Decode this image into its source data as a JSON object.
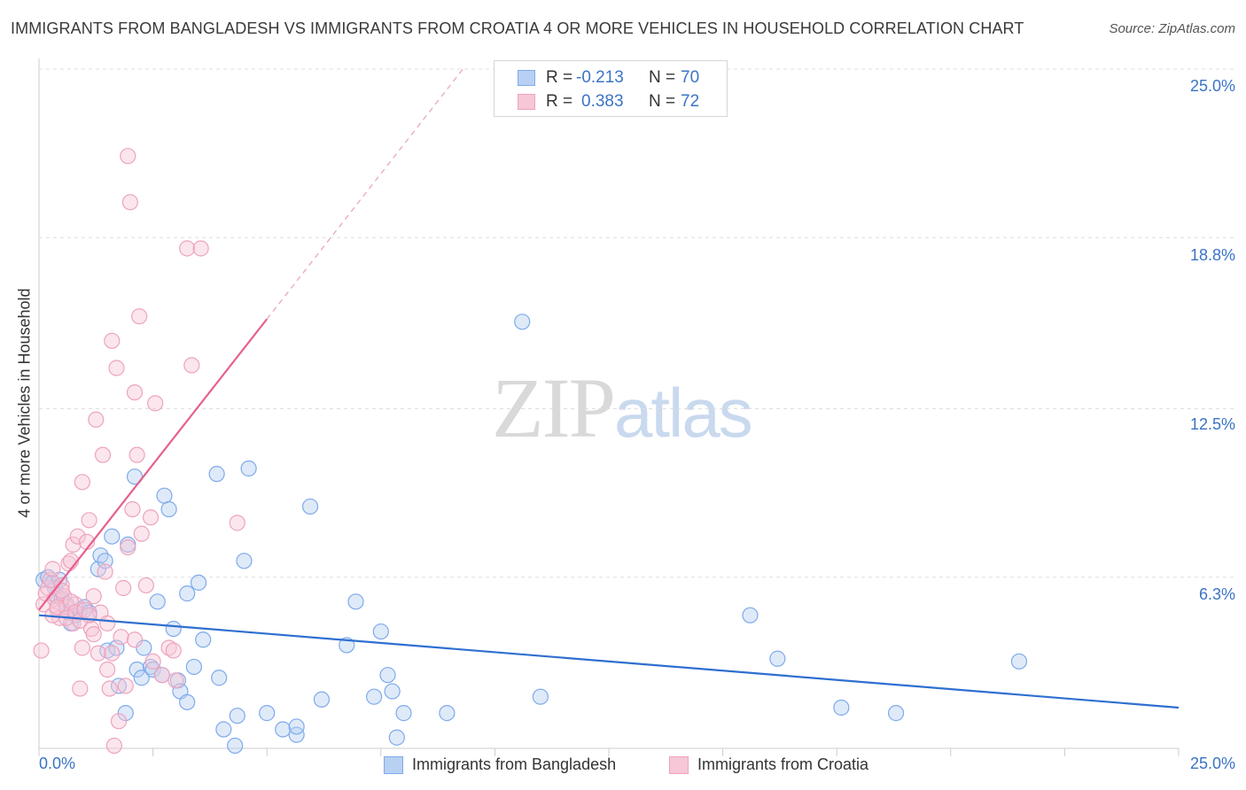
{
  "chart_data": {
    "type": "scatter",
    "title": "IMMIGRANTS FROM BANGLADESH VS IMMIGRANTS FROM CROATIA 4 OR MORE VEHICLES IN HOUSEHOLD CORRELATION CHART",
    "source": "Source: ZipAtlas.com",
    "xlabel": "",
    "ylabel": "4 or more Vehicles in Household",
    "xlim": [
      0,
      25
    ],
    "ylim": [
      0,
      25
    ],
    "x_tick_labels": [
      "0.0%",
      "25.0%"
    ],
    "y_tick_values": [
      6.3,
      12.5,
      18.8,
      25.0
    ],
    "y_tick_labels": [
      "6.3%",
      "12.5%",
      "18.8%",
      "25.0%"
    ],
    "grid": true,
    "legend_position": "bottom-center",
    "watermark": {
      "part1": "ZIP",
      "part2": "atlas"
    },
    "series": [
      {
        "name": "Immigrants from Bangladesh",
        "color": "#7eaaeb",
        "fill": "#b8d0f2",
        "line_color": "#2f6fd0",
        "r_label": "R =",
        "r_value": "-0.213",
        "n_label": "N =",
        "n_value": "70",
        "trend": {
          "x": [
            0,
            25
          ],
          "y": [
            4.9,
            1.5
          ],
          "dashed_x": null
        },
        "points": [
          [
            0.1,
            6.2
          ],
          [
            0.2,
            6.3
          ],
          [
            0.3,
            6.1
          ],
          [
            0.35,
            5.9
          ],
          [
            0.4,
            5.6
          ],
          [
            0.45,
            6.2
          ],
          [
            0.5,
            5.5
          ],
          [
            0.6,
            5.3
          ],
          [
            0.65,
            5.0
          ],
          [
            0.7,
            4.6
          ],
          [
            0.8,
            4.9
          ],
          [
            0.9,
            5.1
          ],
          [
            1.0,
            5.2
          ],
          [
            1.1,
            5.0
          ],
          [
            1.3,
            6.6
          ],
          [
            1.35,
            7.1
          ],
          [
            1.45,
            6.9
          ],
          [
            1.6,
            7.8
          ],
          [
            1.5,
            3.6
          ],
          [
            1.7,
            3.7
          ],
          [
            1.75,
            2.3
          ],
          [
            1.9,
            1.3
          ],
          [
            1.95,
            7.5
          ],
          [
            2.1,
            10.0
          ],
          [
            2.15,
            2.9
          ],
          [
            2.25,
            2.6
          ],
          [
            2.3,
            3.7
          ],
          [
            2.45,
            3.0
          ],
          [
            2.5,
            2.9
          ],
          [
            2.6,
            5.4
          ],
          [
            2.7,
            2.7
          ],
          [
            2.75,
            9.3
          ],
          [
            2.85,
            8.8
          ],
          [
            2.95,
            4.4
          ],
          [
            3.05,
            2.5
          ],
          [
            3.1,
            2.1
          ],
          [
            3.25,
            1.7
          ],
          [
            3.25,
            5.7
          ],
          [
            3.4,
            3.0
          ],
          [
            3.5,
            6.1
          ],
          [
            3.6,
            4.0
          ],
          [
            3.9,
            10.1
          ],
          [
            3.95,
            2.6
          ],
          [
            4.05,
            0.7
          ],
          [
            4.3,
            0.1
          ],
          [
            4.35,
            1.2
          ],
          [
            4.5,
            6.9
          ],
          [
            4.6,
            10.3
          ],
          [
            5.0,
            1.3
          ],
          [
            5.35,
            0.7
          ],
          [
            5.65,
            0.5
          ],
          [
            5.65,
            0.8
          ],
          [
            5.95,
            8.9
          ],
          [
            6.2,
            1.8
          ],
          [
            6.75,
            3.8
          ],
          [
            6.95,
            5.4
          ],
          [
            7.35,
            1.9
          ],
          [
            7.5,
            4.3
          ],
          [
            7.65,
            2.7
          ],
          [
            7.75,
            2.1
          ],
          [
            7.85,
            0.4
          ],
          [
            8.0,
            1.3
          ],
          [
            8.95,
            1.3
          ],
          [
            11.0,
            1.9
          ],
          [
            10.6,
            15.7
          ],
          [
            15.6,
            4.9
          ],
          [
            16.2,
            3.3
          ],
          [
            17.6,
            1.5
          ],
          [
            18.8,
            1.3
          ],
          [
            21.5,
            3.2
          ]
        ]
      },
      {
        "name": "Immigrants from Croatia",
        "color": "#eea3bd",
        "fill": "#f6c7d6",
        "line_color": "#e5608e",
        "r_label": "R =",
        "r_value": "0.383",
        "n_label": "N =",
        "n_value": "72",
        "trend": {
          "x": [
            0,
            5
          ],
          "y": [
            5.1,
            15.8
          ],
          "dashed_x": [
            5,
            9.3
          ]
        },
        "points": [
          [
            0.05,
            3.6
          ],
          [
            0.1,
            5.3
          ],
          [
            0.15,
            5.7
          ],
          [
            0.2,
            5.9
          ],
          [
            0.25,
            6.2
          ],
          [
            0.3,
            6.6
          ],
          [
            0.35,
            5.5
          ],
          [
            0.4,
            5.1
          ],
          [
            0.45,
            4.8
          ],
          [
            0.5,
            6.0
          ],
          [
            0.55,
            5.6
          ],
          [
            0.6,
            5.2
          ],
          [
            0.65,
            6.8
          ],
          [
            0.7,
            6.9
          ],
          [
            0.75,
            4.6
          ],
          [
            0.75,
            7.5
          ],
          [
            0.8,
            5.3
          ],
          [
            0.85,
            7.8
          ],
          [
            0.9,
            2.2
          ],
          [
            0.95,
            3.7
          ],
          [
            0.95,
            9.8
          ],
          [
            1.05,
            7.6
          ],
          [
            1.1,
            8.4
          ],
          [
            1.15,
            4.4
          ],
          [
            1.2,
            4.2
          ],
          [
            1.2,
            5.6
          ],
          [
            1.25,
            12.1
          ],
          [
            1.3,
            3.5
          ],
          [
            1.35,
            5.0
          ],
          [
            1.4,
            10.8
          ],
          [
            1.45,
            6.5
          ],
          [
            1.5,
            2.9
          ],
          [
            1.5,
            4.6
          ],
          [
            1.55,
            2.2
          ],
          [
            1.6,
            3.5
          ],
          [
            1.6,
            15.0
          ],
          [
            1.65,
            0.1
          ],
          [
            1.7,
            14.0
          ],
          [
            1.75,
            1.0
          ],
          [
            1.8,
            4.1
          ],
          [
            1.85,
            5.9
          ],
          [
            1.9,
            2.3
          ],
          [
            1.95,
            7.4
          ],
          [
            1.95,
            21.8
          ],
          [
            2.0,
            20.1
          ],
          [
            2.05,
            8.8
          ],
          [
            2.1,
            4.0
          ],
          [
            2.1,
            13.1
          ],
          [
            2.15,
            10.8
          ],
          [
            2.2,
            15.9
          ],
          [
            2.25,
            7.9
          ],
          [
            2.35,
            6.0
          ],
          [
            2.45,
            8.5
          ],
          [
            2.5,
            3.2
          ],
          [
            2.55,
            12.7
          ],
          [
            2.7,
            2.7
          ],
          [
            2.85,
            3.7
          ],
          [
            2.95,
            3.6
          ],
          [
            3.0,
            2.5
          ],
          [
            3.25,
            18.4
          ],
          [
            3.35,
            14.1
          ],
          [
            3.55,
            18.4
          ],
          [
            4.35,
            8.3
          ],
          [
            0.3,
            4.9
          ],
          [
            0.4,
            5.2
          ],
          [
            0.5,
            5.8
          ],
          [
            0.6,
            4.8
          ],
          [
            0.7,
            5.4
          ],
          [
            0.8,
            5.0
          ],
          [
            0.9,
            4.7
          ],
          [
            1.0,
            5.1
          ],
          [
            1.1,
            4.9
          ]
        ]
      }
    ]
  }
}
